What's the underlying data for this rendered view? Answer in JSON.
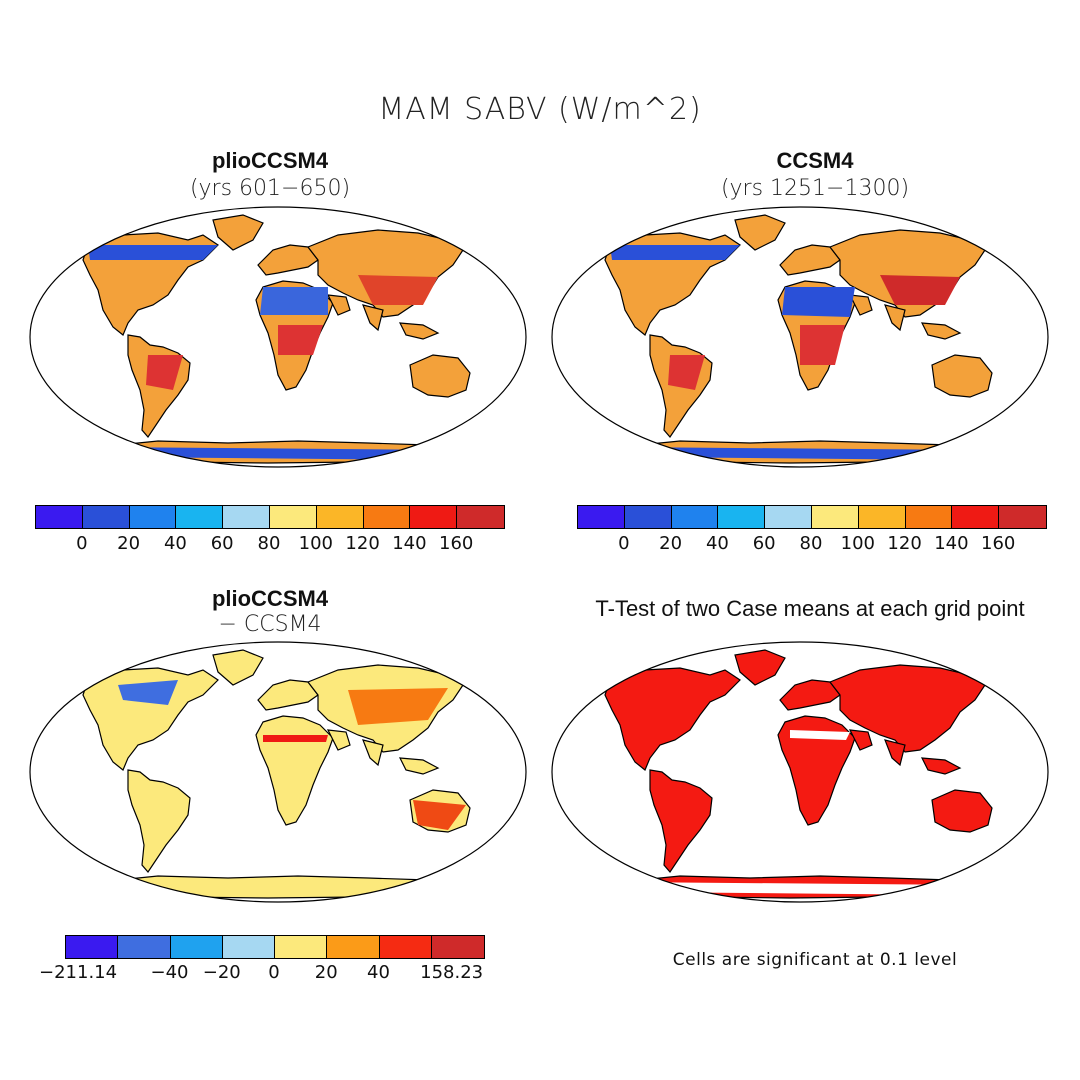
{
  "title": "MAM SABV (W/m^2)",
  "panels": [
    {
      "title": "plioCCSM4",
      "subtitle": "(yrs 601−650)"
    },
    {
      "title": "CCSM4",
      "subtitle": "(yrs 1251−1300)"
    },
    {
      "title": "plioCCSM4",
      "subtitle": "− CCSM4"
    },
    {
      "title": "T-Test of two Case means at each grid point",
      "subtitle": ""
    }
  ],
  "colorbar_abs": {
    "colors": [
      "#3a1af0",
      "#2a50d8",
      "#1f82ee",
      "#19b4f0",
      "#a6d8f2",
      "#fce97c",
      "#fbb627",
      "#f77a12",
      "#ef1a14",
      "#cf2a2a"
    ],
    "ticks": [
      "0",
      "20",
      "40",
      "60",
      "80",
      "100",
      "120",
      "140",
      "160"
    ]
  },
  "colorbar_diff": {
    "colors": [
      "#3a1af0",
      "#3f6ee0",
      "#1fa2ef",
      "#a6d8f2",
      "#fce97c",
      "#fb9b18",
      "#f52b12",
      "#cf2a2a"
    ],
    "ticks": [
      "−211.14",
      "−40",
      "−20",
      "0",
      "20",
      "40",
      "158.23"
    ]
  },
  "note": "Cells are significant at 0.1 level"
}
